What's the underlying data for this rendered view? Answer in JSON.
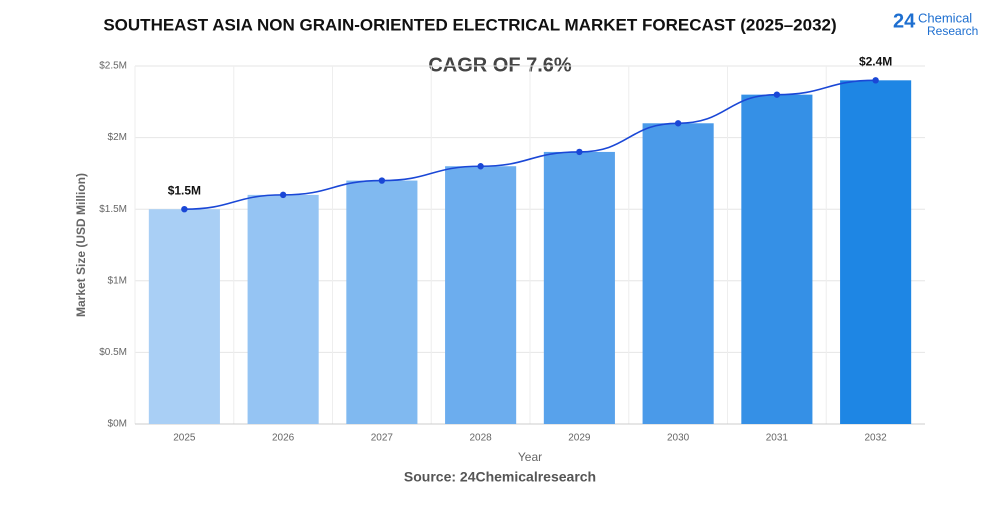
{
  "chart_data": {
    "type": "bar",
    "title": "SOUTHEAST ASIA NON GRAIN-ORIENTED ELECTRICAL MARKET FORECAST (2025–2032)",
    "subtitle": "CAGR OF 7.6%",
    "x_label": "Year",
    "y_label": "Market Size (USD Million)",
    "source": "Source: 24Chemicalresearch",
    "logo": {
      "number": "24",
      "line1": "Chemical",
      "line2": "Research"
    },
    "categories": [
      "2025",
      "2026",
      "2027",
      "2028",
      "2029",
      "2030",
      "2031",
      "2032"
    ],
    "values": [
      1.5,
      1.6,
      1.7,
      1.8,
      1.9,
      2.1,
      2.3,
      2.4
    ],
    "value_labels": [
      "$1.5M",
      null,
      null,
      null,
      null,
      null,
      null,
      "$2.4M"
    ],
    "colors": [
      "#a9cff5",
      "#95c4f3",
      "#80b9f0",
      "#6cadee",
      "#58a2eb",
      "#4a9ae9",
      "#3590e6",
      "#1e86e4"
    ],
    "line_overlay": true,
    "line_color": "#1a47d6",
    "ylim": [
      0,
      2.5
    ],
    "yticks": [
      {
        "value": 0,
        "label": "$0M"
      },
      {
        "value": 0.5,
        "label": "$0.5M"
      },
      {
        "value": 1,
        "label": "$1M"
      },
      {
        "value": 1.5,
        "label": "$1.5M"
      },
      {
        "value": 2,
        "label": "$2M"
      },
      {
        "value": 2.5,
        "label": "$2.5M"
      }
    ],
    "grid": true
  }
}
